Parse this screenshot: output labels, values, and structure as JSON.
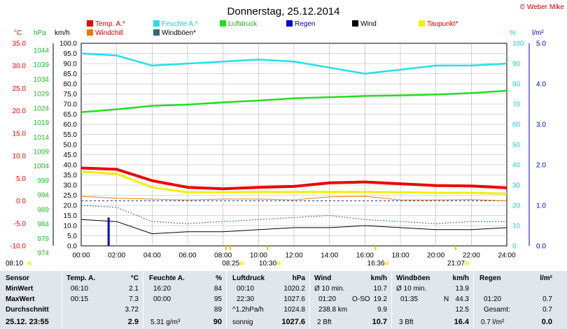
{
  "header": {
    "title": "Donnerstag, 25.12.2014",
    "copyright": "© Weber Mike"
  },
  "colors": {
    "temp": "#ee0000",
    "humidity": "#22e0e8",
    "pressure": "#22dd22",
    "rain": "#0000cc",
    "wind": "#000000",
    "dewpoint": "#f0f000",
    "windchill": "#ee7700",
    "gust": "#336677",
    "grid": "#a0a0a0",
    "table_bg": "#dfe6ec"
  },
  "legend": [
    {
      "label": "Temp. A.*",
      "color": "#ee0000"
    },
    {
      "label": "Feuchte A.*",
      "color": "#22e0e8"
    },
    {
      "label": "Luftdruck",
      "color": "#22dd22"
    },
    {
      "label": "Regen",
      "color": "#0000cc"
    },
    {
      "label": "Wind",
      "color": "#000000"
    },
    {
      "label": "Taupunkt*",
      "color": "#f0f000"
    },
    {
      "label": "Windchill",
      "color": "#ee7700"
    },
    {
      "label": "Windböen*",
      "color": "#336677"
    }
  ],
  "axes": {
    "temp_unit": "°C",
    "temp_ticks": [
      "35.0",
      "30.0",
      "25.0",
      "20.0",
      "15.0",
      "10.0",
      "5.0",
      "0.0",
      "-5.0",
      "-10.0"
    ],
    "hpa_unit": "hPa",
    "hpa_ticks": [
      "1044",
      "1039",
      "1034",
      "1029",
      "1024",
      "1019",
      "1014",
      "1009",
      "1004",
      "999",
      "994",
      "989",
      "984",
      "979",
      "974"
    ],
    "kmh_unit": "km/h",
    "kmh_ticks": [
      "100.0",
      "95.0",
      "90.0",
      "85.0",
      "80.0",
      "75.0",
      "70.0",
      "65.0",
      "60.0",
      "55.0",
      "50.0",
      "45.0",
      "40.0",
      "35.0",
      "30.0",
      "25.0",
      "20.0",
      "15.0",
      "10.0",
      "5.0",
      "0.0"
    ],
    "pct_unit": "%",
    "pct_ticks": [
      "100",
      "90",
      "80",
      "70",
      "60",
      "50",
      "40",
      "30",
      "20",
      "10",
      "0"
    ],
    "rain_unit": "l/m²",
    "rain_ticks": [
      "5.0",
      "4.0",
      "3.0",
      "2.0",
      "1.0",
      "0.0"
    ],
    "x_ticks": [
      "00:00",
      "02:00",
      "04:00",
      "06:00",
      "08:00",
      "10:00",
      "12:00",
      "14:00",
      "16:00",
      "18:00",
      "20:00",
      "22:00",
      "24:00"
    ]
  },
  "sun_times": [
    "08:10",
    "08:25",
    "10:30",
    "16:36",
    "21:07"
  ],
  "chart_data": {
    "type": "line",
    "x": [
      "00:00",
      "02:00",
      "04:00",
      "06:00",
      "08:00",
      "10:00",
      "12:00",
      "14:00",
      "16:00",
      "18:00",
      "20:00",
      "22:00",
      "24:00"
    ],
    "series": [
      {
        "name": "Temp. A.*",
        "unit": "°C",
        "values": [
          7.3,
          7.0,
          4.5,
          3.0,
          2.7,
          3.0,
          3.2,
          4.0,
          4.2,
          3.8,
          3.4,
          3.3,
          2.9
        ]
      },
      {
        "name": "Feuchte A.*",
        "unit": "%",
        "values": [
          95,
          94,
          89,
          90,
          91,
          92,
          91,
          88,
          85,
          87,
          89,
          89,
          90
        ]
      },
      {
        "name": "Luftdruck",
        "unit": "hPa",
        "values": [
          1020.2,
          1021.2,
          1022.4,
          1022.8,
          1023.6,
          1024.2,
          1025.0,
          1025.4,
          1025.8,
          1026.0,
          1026.3,
          1026.8,
          1027.6
        ]
      },
      {
        "name": "Taupunkt*",
        "unit": "°C",
        "values": [
          6.5,
          6.0,
          3.0,
          1.9,
          1.9,
          2.0,
          2.0,
          2.0,
          2.0,
          1.9,
          1.8,
          1.8,
          1.6
        ]
      },
      {
        "name": "Windchill",
        "unit": "°C",
        "values": [
          1.0,
          0.6,
          0.4,
          0.2,
          0.4,
          0.4,
          0.2,
          0.9,
          1.0,
          0.2,
          0.2,
          0.3,
          0.0
        ]
      },
      {
        "name": "Wind",
        "unit": "km/h",
        "values": [
          13,
          12,
          6,
          7,
          7,
          8,
          9,
          9,
          10,
          9,
          8,
          8,
          9
        ]
      },
      {
        "name": "Windböen*",
        "unit": "km/h",
        "values": [
          20,
          19,
          12,
          11,
          12,
          13,
          14,
          15,
          13,
          12,
          11,
          12,
          12
        ]
      },
      {
        "name": "Regen",
        "unit": "l/m²",
        "values": [
          0,
          0.7,
          0,
          0,
          0,
          0,
          0,
          0,
          0,
          0,
          0,
          0,
          0
        ]
      }
    ],
    "ranges": {
      "temp": [
        -10,
        35
      ],
      "hpa": [
        974,
        1044
      ],
      "kmh": [
        0,
        100
      ],
      "pct": [
        0,
        100
      ],
      "rain": [
        0,
        5
      ]
    },
    "grid": true
  },
  "table": {
    "row_labels": [
      "Sensor",
      "MinWert",
      "MaxWert",
      "Durchschnitt",
      "25.12. 23:55"
    ],
    "temp": {
      "head": "Temp. A.",
      "unit": "°C",
      "min_time": "06:10",
      "min": "2.1",
      "max_time": "00:15",
      "max": "7.3",
      "avg": "3.72",
      "now": "2.9"
    },
    "hum": {
      "head": "Feuchte A.",
      "unit": "%",
      "min_time": "16:20",
      "min": "84",
      "max_time": "00:00",
      "max": "95",
      "avg": "89",
      "abs": "5.31 g/m³",
      "now": "90"
    },
    "press": {
      "head": "Luftdruck",
      "unit": "hPa",
      "min_time": "00:10",
      "min": "1020.2",
      "max_time": "22:30",
      "max": "1027.6",
      "trend": "^1.2hPa/h",
      "avg": "1024.8",
      "weather": "sonnig",
      "now": "1027.6"
    },
    "wind": {
      "head": "Wind",
      "unit": "km/h",
      "r1a": "Ø 10 min.",
      "r1b": "10.7",
      "r2a": "01:20",
      "r2b": "O-SO",
      "r2c": "19.2",
      "r3a": "238.8 km",
      "r3b": "9.9",
      "r4a": "2 Bft",
      "r4b": "10.7"
    },
    "gust": {
      "head": "Windböen",
      "unit": "km/h",
      "r1a": "Ø 10 min.",
      "r1b": "13.9",
      "r2a": "01:35",
      "r2b": "N",
      "r2c": "44.3",
      "r3b": "12.5",
      "r4a": "3 Bft",
      "r4b": "16.4"
    },
    "rain": {
      "head": "Regen",
      "unit": "l/m²",
      "r2a": "01:20",
      "r2b": "0.7",
      "r3a": "Gesamt:",
      "r3b": "0.7",
      "r4a": "0.7 l/m²",
      "r4b": "0.0"
    }
  }
}
